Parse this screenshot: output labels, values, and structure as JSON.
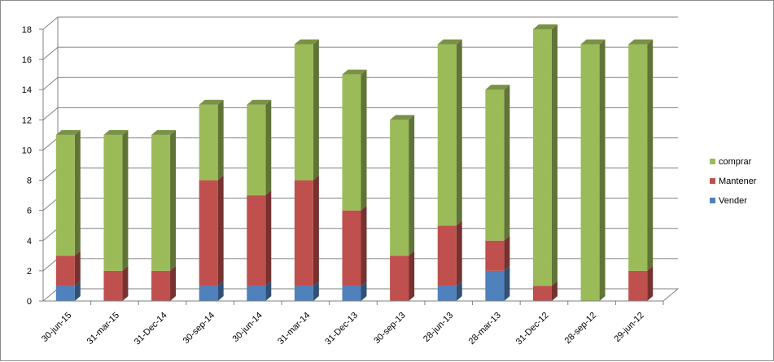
{
  "chart_data": {
    "type": "bar",
    "stacked": true,
    "three_d": true,
    "categories": [
      "30-jun-15",
      "31-mar-15",
      "31-Dec-14",
      "30-sep-14",
      "30-jun-14",
      "31-mar-14",
      "31-Dec-13",
      "30-sep-13",
      "28-jun-13",
      "28-mar-13",
      "31-Dec-12",
      "28-sep-12",
      "29-jun-12"
    ],
    "series": [
      {
        "name": "Vender",
        "color": "#4f81bd",
        "values": [
          1,
          0,
          0,
          1,
          1,
          1,
          1,
          0,
          1,
          2,
          0,
          0,
          0
        ]
      },
      {
        "name": "Mantener",
        "color": "#c0504d",
        "values": [
          2,
          2,
          2,
          7,
          6,
          7,
          5,
          3,
          4,
          2,
          1,
          0,
          2
        ]
      },
      {
        "name": "comprar",
        "color": "#9bbb59",
        "values": [
          8,
          9,
          9,
          5,
          6,
          9,
          9,
          9,
          12,
          10,
          17,
          17,
          15
        ]
      }
    ],
    "ylim": [
      0,
      18
    ],
    "yticks": [
      "0",
      "2",
      "4",
      "6",
      "8",
      "10",
      "12",
      "14",
      "16",
      "18"
    ],
    "grid": true,
    "legend_position": "right",
    "legend_order": [
      "comprar",
      "Mantener",
      "Vender"
    ]
  }
}
